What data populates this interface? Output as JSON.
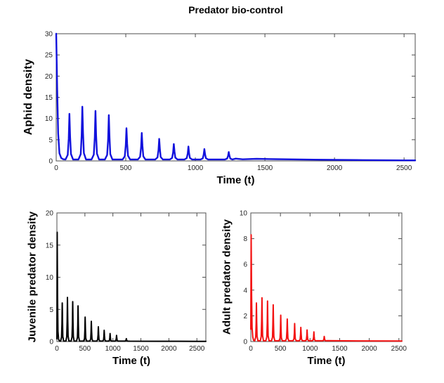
{
  "figure": {
    "title": "Predator bio-control",
    "background": "#ffffff",
    "axis_color": "#4d4d4d",
    "tick_label_color": "#262626"
  },
  "chart_data": [
    {
      "id": "aphid-density",
      "type": "line",
      "title": "Predator bio-control",
      "xlabel": "Time (t)",
      "ylabel": "Aphid density",
      "legend": "none",
      "grid": false,
      "color": "#1212dd",
      "line_width": 2.4,
      "xlim": [
        0,
        2500
      ],
      "ylim": [
        0,
        30
      ],
      "xticks": [
        0,
        500,
        1000,
        1500,
        2000,
        2500
      ],
      "yticks": [
        0,
        5,
        10,
        15,
        20,
        25,
        30
      ],
      "baseline": 0.35,
      "initial_points": [
        [
          0,
          30
        ],
        [
          7,
          17
        ],
        [
          14,
          6.5
        ],
        [
          23,
          1.8
        ],
        [
          36,
          0.7
        ],
        [
          50,
          0.4
        ]
      ],
      "pulses": [
        [
          95,
          11.1
        ],
        [
          188,
          12.8
        ],
        [
          282,
          11.8
        ],
        [
          378,
          10.8
        ],
        [
          505,
          7.7
        ],
        [
          615,
          6.6
        ],
        [
          740,
          5.2
        ],
        [
          845,
          4.0
        ],
        [
          950,
          3.4
        ],
        [
          1065,
          2.8
        ],
        [
          1240,
          2.1
        ]
      ],
      "tail_points": [
        [
          1290,
          0.55
        ],
        [
          1340,
          0.38
        ],
        [
          1440,
          0.5
        ],
        [
          1580,
          0.42
        ],
        [
          1850,
          0.3
        ],
        [
          2200,
          0.2
        ],
        [
          2500,
          0.14
        ]
      ]
    },
    {
      "id": "juvenile-predator-density",
      "type": "line",
      "title": "",
      "xlabel": "Time (t)",
      "ylabel": "Juvenile predator density",
      "legend": "none",
      "grid": false,
      "color": "#000000",
      "line_width": 2.0,
      "xlim": [
        0,
        2500
      ],
      "ylim": [
        0,
        20
      ],
      "xticks": [
        0,
        500,
        1000,
        1500,
        2000,
        2500
      ],
      "yticks": [
        0,
        5,
        10,
        15,
        20
      ],
      "baseline": 0.07,
      "initial_points": [
        [
          0,
          0.4
        ],
        [
          5,
          17.0
        ],
        [
          11,
          7.0
        ],
        [
          19,
          1.6
        ],
        [
          30,
          0.35
        ],
        [
          45,
          0.1
        ]
      ],
      "pulses": [
        [
          95,
          6.0
        ],
        [
          188,
          6.85
        ],
        [
          282,
          6.2
        ],
        [
          378,
          5.55
        ],
        [
          505,
          3.8
        ],
        [
          615,
          3.15
        ],
        [
          740,
          2.3
        ],
        [
          845,
          1.75
        ],
        [
          950,
          1.25
        ],
        [
          1065,
          0.95
        ],
        [
          1240,
          0.45
        ]
      ],
      "tail_points": [
        [
          1300,
          0.06
        ],
        [
          1800,
          0.04
        ],
        [
          2500,
          0.03
        ]
      ]
    },
    {
      "id": "adult-predator-density",
      "type": "line",
      "title": "",
      "xlabel": "Time (t)",
      "ylabel": "Adult predator density",
      "legend": "none",
      "grid": false,
      "color": "#f31212",
      "line_width": 2.0,
      "xlim": [
        0,
        2500
      ],
      "ylim": [
        0,
        10
      ],
      "xticks": [
        0,
        500,
        1000,
        1500,
        2000,
        2500
      ],
      "yticks": [
        0,
        2,
        4,
        6,
        8,
        10
      ],
      "baseline": 0.06,
      "initial_points": [
        [
          0,
          0.95
        ],
        [
          6,
          8.3
        ],
        [
          13,
          3.6
        ],
        [
          21,
          1.1
        ],
        [
          33,
          0.35
        ],
        [
          48,
          0.1
        ]
      ],
      "pulses": [
        [
          95,
          3.0
        ],
        [
          188,
          3.4
        ],
        [
          282,
          3.15
        ],
        [
          378,
          2.85
        ],
        [
          505,
          2.05
        ],
        [
          615,
          1.75
        ],
        [
          740,
          1.4
        ],
        [
          845,
          1.1
        ],
        [
          950,
          0.9
        ],
        [
          1065,
          0.75
        ],
        [
          1240,
          0.4
        ]
      ],
      "tail_points": [
        [
          1300,
          0.07
        ],
        [
          1800,
          0.05
        ],
        [
          2500,
          0.04
        ]
      ]
    }
  ]
}
